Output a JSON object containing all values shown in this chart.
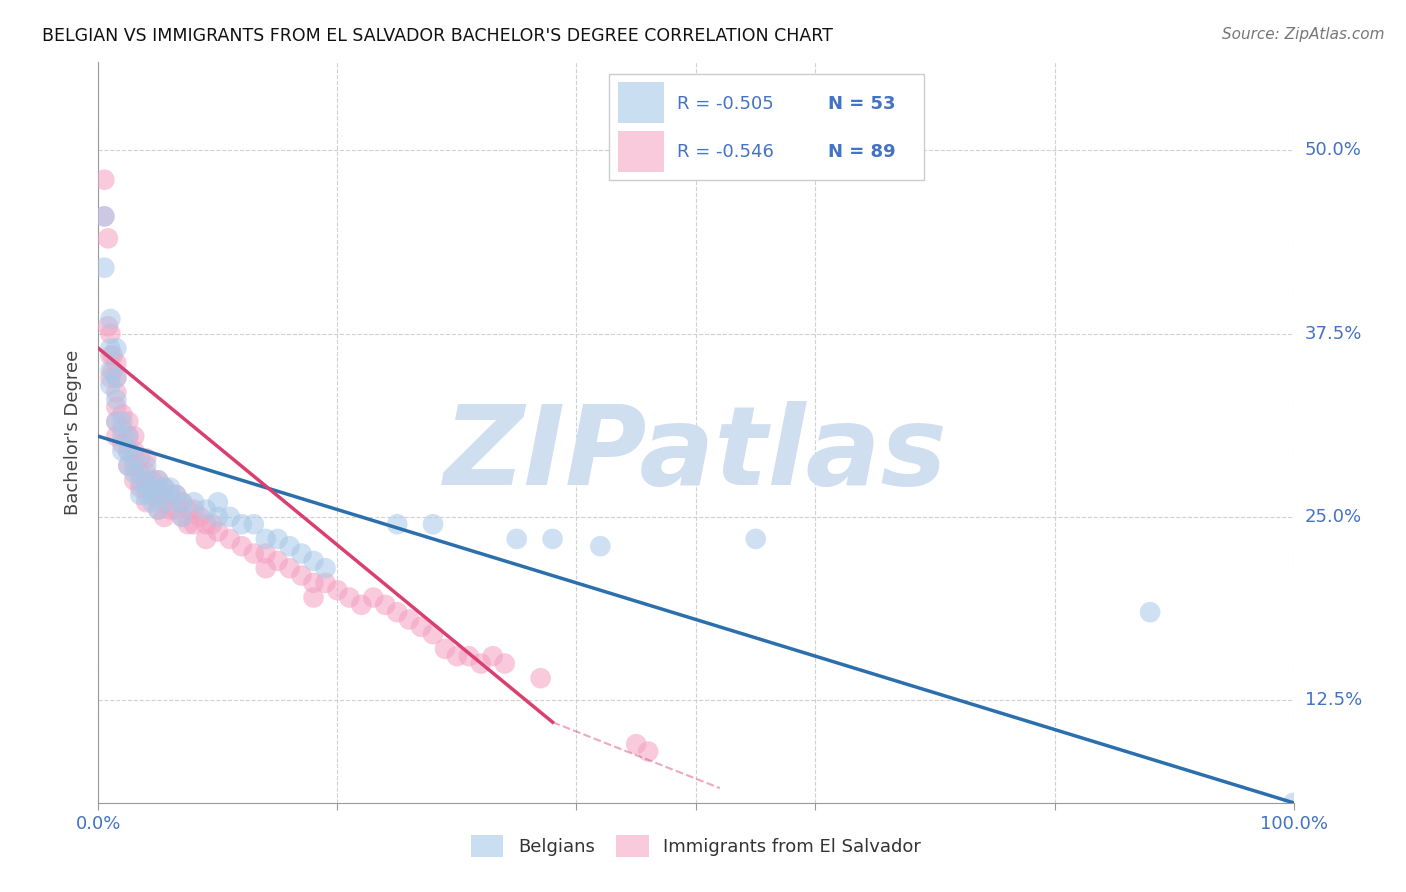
{
  "title": "BELGIAN VS IMMIGRANTS FROM EL SALVADOR BACHELOR'S DEGREE CORRELATION CHART",
  "source": "Source: ZipAtlas.com",
  "ylabel": "Bachelor's Degree",
  "ytick_vals": [
    0.125,
    0.25,
    0.375,
    0.5
  ],
  "ytick_labels": [
    "12.5%",
    "25.0%",
    "37.5%",
    "50.0%"
  ],
  "xtick_vals": [
    0.0,
    1.0
  ],
  "xtick_labels": [
    "0.0%",
    "100.0%"
  ],
  "legend_blue": {
    "R": -0.505,
    "N": 53,
    "label": "Belgians"
  },
  "legend_pink": {
    "R": -0.546,
    "N": 89,
    "label": "Immigrants from El Salvador"
  },
  "blue_color": "#a8c8e8",
  "pink_color": "#f4a0c0",
  "blue_line_color": "#2c6fad",
  "pink_line_color": "#d94070",
  "watermark_text": "ZIPatlas",
  "watermark_color": "#d0dff0",
  "bg_color": "#ffffff",
  "blue_scatter": [
    [
      0.005,
      0.455
    ],
    [
      0.005,
      0.42
    ],
    [
      0.01,
      0.385
    ],
    [
      0.01,
      0.365
    ],
    [
      0.01,
      0.35
    ],
    [
      0.01,
      0.34
    ],
    [
      0.015,
      0.365
    ],
    [
      0.015,
      0.345
    ],
    [
      0.015,
      0.33
    ],
    [
      0.015,
      0.315
    ],
    [
      0.02,
      0.315
    ],
    [
      0.02,
      0.305
    ],
    [
      0.02,
      0.295
    ],
    [
      0.025,
      0.305
    ],
    [
      0.025,
      0.295
    ],
    [
      0.025,
      0.285
    ],
    [
      0.03,
      0.29
    ],
    [
      0.03,
      0.28
    ],
    [
      0.035,
      0.275
    ],
    [
      0.035,
      0.265
    ],
    [
      0.04,
      0.285
    ],
    [
      0.04,
      0.275
    ],
    [
      0.04,
      0.265
    ],
    [
      0.045,
      0.27
    ],
    [
      0.045,
      0.26
    ],
    [
      0.05,
      0.275
    ],
    [
      0.05,
      0.265
    ],
    [
      0.05,
      0.255
    ],
    [
      0.055,
      0.27
    ],
    [
      0.06,
      0.27
    ],
    [
      0.06,
      0.26
    ],
    [
      0.065,
      0.265
    ],
    [
      0.07,
      0.26
    ],
    [
      0.07,
      0.25
    ],
    [
      0.08,
      0.26
    ],
    [
      0.09,
      0.255
    ],
    [
      0.1,
      0.26
    ],
    [
      0.1,
      0.25
    ],
    [
      0.11,
      0.25
    ],
    [
      0.12,
      0.245
    ],
    [
      0.13,
      0.245
    ],
    [
      0.14,
      0.235
    ],
    [
      0.15,
      0.235
    ],
    [
      0.16,
      0.23
    ],
    [
      0.17,
      0.225
    ],
    [
      0.18,
      0.22
    ],
    [
      0.19,
      0.215
    ],
    [
      0.25,
      0.245
    ],
    [
      0.28,
      0.245
    ],
    [
      0.35,
      0.235
    ],
    [
      0.38,
      0.235
    ],
    [
      0.42,
      0.23
    ],
    [
      0.55,
      0.235
    ],
    [
      0.88,
      0.185
    ],
    [
      1.0,
      0.055
    ]
  ],
  "pink_scatter": [
    [
      0.005,
      0.48
    ],
    [
      0.005,
      0.455
    ],
    [
      0.008,
      0.44
    ],
    [
      0.008,
      0.38
    ],
    [
      0.01,
      0.375
    ],
    [
      0.01,
      0.36
    ],
    [
      0.01,
      0.345
    ],
    [
      0.012,
      0.36
    ],
    [
      0.012,
      0.35
    ],
    [
      0.015,
      0.355
    ],
    [
      0.015,
      0.345
    ],
    [
      0.015,
      0.335
    ],
    [
      0.015,
      0.325
    ],
    [
      0.015,
      0.315
    ],
    [
      0.015,
      0.305
    ],
    [
      0.02,
      0.32
    ],
    [
      0.02,
      0.31
    ],
    [
      0.02,
      0.3
    ],
    [
      0.025,
      0.315
    ],
    [
      0.025,
      0.305
    ],
    [
      0.025,
      0.295
    ],
    [
      0.025,
      0.285
    ],
    [
      0.03,
      0.305
    ],
    [
      0.03,
      0.295
    ],
    [
      0.03,
      0.285
    ],
    [
      0.03,
      0.275
    ],
    [
      0.035,
      0.29
    ],
    [
      0.035,
      0.28
    ],
    [
      0.035,
      0.27
    ],
    [
      0.04,
      0.29
    ],
    [
      0.04,
      0.28
    ],
    [
      0.04,
      0.27
    ],
    [
      0.04,
      0.26
    ],
    [
      0.045,
      0.275
    ],
    [
      0.045,
      0.265
    ],
    [
      0.05,
      0.275
    ],
    [
      0.05,
      0.265
    ],
    [
      0.05,
      0.255
    ],
    [
      0.055,
      0.27
    ],
    [
      0.055,
      0.26
    ],
    [
      0.055,
      0.25
    ],
    [
      0.06,
      0.265
    ],
    [
      0.06,
      0.255
    ],
    [
      0.065,
      0.265
    ],
    [
      0.065,
      0.255
    ],
    [
      0.07,
      0.26
    ],
    [
      0.07,
      0.25
    ],
    [
      0.075,
      0.255
    ],
    [
      0.075,
      0.245
    ],
    [
      0.08,
      0.255
    ],
    [
      0.08,
      0.245
    ],
    [
      0.085,
      0.25
    ],
    [
      0.09,
      0.245
    ],
    [
      0.09,
      0.235
    ],
    [
      0.095,
      0.245
    ],
    [
      0.1,
      0.24
    ],
    [
      0.11,
      0.235
    ],
    [
      0.12,
      0.23
    ],
    [
      0.13,
      0.225
    ],
    [
      0.14,
      0.225
    ],
    [
      0.14,
      0.215
    ],
    [
      0.15,
      0.22
    ],
    [
      0.16,
      0.215
    ],
    [
      0.17,
      0.21
    ],
    [
      0.18,
      0.205
    ],
    [
      0.18,
      0.195
    ],
    [
      0.19,
      0.205
    ],
    [
      0.2,
      0.2
    ],
    [
      0.21,
      0.195
    ],
    [
      0.22,
      0.19
    ],
    [
      0.23,
      0.195
    ],
    [
      0.24,
      0.19
    ],
    [
      0.25,
      0.185
    ],
    [
      0.26,
      0.18
    ],
    [
      0.27,
      0.175
    ],
    [
      0.28,
      0.17
    ],
    [
      0.29,
      0.16
    ],
    [
      0.3,
      0.155
    ],
    [
      0.31,
      0.155
    ],
    [
      0.32,
      0.15
    ],
    [
      0.33,
      0.155
    ],
    [
      0.34,
      0.15
    ],
    [
      0.37,
      0.14
    ],
    [
      0.45,
      0.095
    ],
    [
      0.46,
      0.09
    ]
  ],
  "blue_line": {
    "x0": 0.0,
    "y0": 0.305,
    "x1": 1.0,
    "y1": 0.055
  },
  "pink_line_solid": {
    "x0": 0.0,
    "y0": 0.365,
    "x1": 0.38,
    "y1": 0.11
  },
  "pink_line_dash": {
    "x0": 0.38,
    "y0": 0.11,
    "x1": 0.52,
    "y1": 0.065
  },
  "xlim": [
    0.0,
    1.0
  ],
  "ylim": [
    0.055,
    0.56
  ]
}
